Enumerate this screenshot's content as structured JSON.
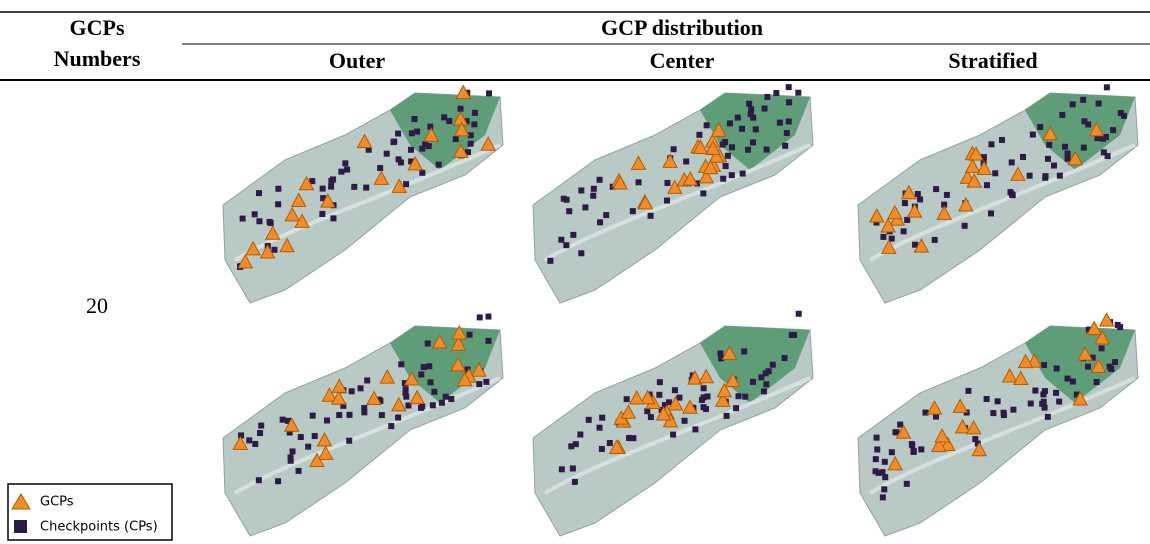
{
  "header": {
    "row_label_lines": [
      "GCPs",
      "Numbers"
    ],
    "group": "GCP distribution",
    "columns": [
      "Outer",
      "Center",
      "Stratified"
    ]
  },
  "rows": [
    {
      "label": "20"
    }
  ],
  "legend": [
    {
      "label": "GCPs"
    },
    {
      "label": "Checkpoints (CPs)"
    }
  ]
}
